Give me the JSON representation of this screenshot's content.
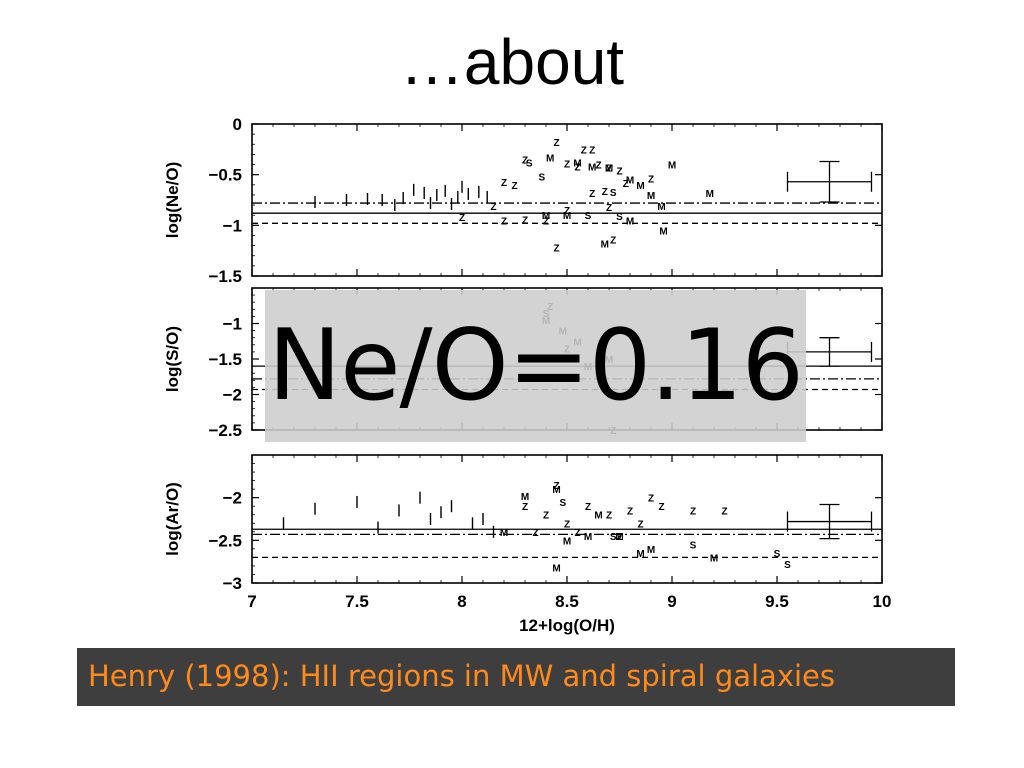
{
  "slide": {
    "title": "…about",
    "overlay_label": "Ne/O=0.16",
    "caption": "Henry (1998): HII regions in MW and spiral galaxies",
    "caption_color": "#ff8a1c",
    "caption_background": "#3e3e3e"
  },
  "chart_data": [
    {
      "type": "scatter",
      "panel": "top",
      "ylabel": "log(Ne/O)",
      "xlim": [
        7,
        10
      ],
      "ylim": [
        -1.5,
        0
      ],
      "yticks": [
        0,
        -0.5,
        -1,
        -1.5
      ],
      "ytick_labels": [
        "0",
        "−0.5",
        "−1",
        "−1.5"
      ],
      "reference_lines": [
        {
          "style": "solid",
          "y": -0.88
        },
        {
          "style": "dashdot",
          "y": -0.78
        },
        {
          "style": "dashed",
          "y": -0.98
        }
      ],
      "error_bar": {
        "x": 9.75,
        "y": -0.57,
        "xerr": 0.2,
        "yerr": 0.2
      },
      "series": [
        {
          "marker": "I",
          "points": [
            [
              7.3,
              -0.77
            ],
            [
              7.45,
              -0.75
            ],
            [
              7.55,
              -0.74
            ],
            [
              7.62,
              -0.75
            ],
            [
              7.72,
              -0.73
            ],
            [
              7.77,
              -0.65
            ],
            [
              7.82,
              -0.68
            ],
            [
              7.88,
              -0.7
            ],
            [
              7.92,
              -0.66
            ],
            [
              7.98,
              -0.72
            ],
            [
              8.03,
              -0.69
            ],
            [
              8.08,
              -0.67
            ],
            [
              7.85,
              -0.78
            ],
            [
              8.0,
              -0.62
            ],
            [
              8.12,
              -0.72
            ],
            [
              7.68,
              -0.8
            ],
            [
              7.95,
              -0.79
            ]
          ]
        },
        {
          "marker": "Z",
          "points": [
            [
              8.45,
              -0.18
            ],
            [
              8.58,
              -0.25
            ],
            [
              8.62,
              -0.25
            ],
            [
              8.3,
              -0.35
            ],
            [
              8.5,
              -0.39
            ],
            [
              8.55,
              -0.42
            ],
            [
              8.65,
              -0.4
            ],
            [
              8.7,
              -0.43
            ],
            [
              8.75,
              -0.46
            ],
            [
              8.78,
              -0.58
            ],
            [
              8.62,
              -0.68
            ],
            [
              8.68,
              -0.66
            ],
            [
              8.2,
              -0.57
            ],
            [
              8.25,
              -0.6
            ],
            [
              8.0,
              -0.92
            ],
            [
              8.15,
              -0.81
            ],
            [
              8.2,
              -0.95
            ],
            [
              8.3,
              -0.94
            ],
            [
              8.4,
              -0.95
            ],
            [
              8.5,
              -0.85
            ],
            [
              8.7,
              -0.82
            ],
            [
              8.9,
              -0.54
            ],
            [
              8.45,
              -1.22
            ],
            [
              8.72,
              -1.14
            ]
          ]
        },
        {
          "marker": "S",
          "points": [
            [
              8.32,
              -0.38
            ],
            [
              8.38,
              -0.52
            ],
            [
              8.6,
              -0.9
            ],
            [
              8.75,
              -0.91
            ],
            [
              8.72,
              -0.67
            ]
          ]
        },
        {
          "marker": "M",
          "points": [
            [
              8.42,
              -0.33
            ],
            [
              8.55,
              -0.38
            ],
            [
              8.62,
              -0.42
            ],
            [
              8.7,
              -0.43
            ],
            [
              8.8,
              -0.55
            ],
            [
              8.85,
              -0.6
            ],
            [
              8.9,
              -0.7
            ],
            [
              8.95,
              -0.81
            ],
            [
              9.0,
              -0.4
            ],
            [
              9.18,
              -0.68
            ],
            [
              8.8,
              -0.95
            ],
            [
              8.96,
              -1.05
            ],
            [
              8.68,
              -1.18
            ],
            [
              8.4,
              -0.9
            ],
            [
              8.5,
              -0.9
            ]
          ]
        }
      ]
    },
    {
      "type": "scatter",
      "panel": "middle",
      "ylabel": "log(S/O)",
      "xlim": [
        7,
        10
      ],
      "ylim": [
        -2.5,
        -0.5
      ],
      "yticks": [
        -1,
        -1.5,
        -2,
        -2.5
      ],
      "ytick_labels": [
        "−1",
        "−1.5",
        "−2",
        "−2.5"
      ],
      "reference_lines": [
        {
          "style": "solid",
          "y": -1.6
        },
        {
          "style": "dashdot",
          "y": -1.78
        },
        {
          "style": "dashed",
          "y": -1.93
        }
      ],
      "error_bar": {
        "x": 9.75,
        "y": -1.4,
        "xerr": 0.2,
        "yerr": 0.2
      },
      "series": [
        {
          "marker": "M",
          "points": [
            [
              8.4,
              -0.95
            ],
            [
              8.48,
              -1.1
            ],
            [
              8.55,
              -1.25
            ],
            [
              8.6,
              -1.6
            ],
            [
              8.7,
              -1.5
            ]
          ]
        },
        {
          "marker": "Z",
          "points": [
            [
              8.42,
              -0.75
            ],
            [
              8.5,
              -1.35
            ],
            [
              8.72,
              -2.5
            ]
          ]
        },
        {
          "marker": "S",
          "points": [
            [
              8.4,
              -0.85
            ]
          ]
        }
      ]
    },
    {
      "type": "scatter",
      "panel": "bottom",
      "ylabel": "log(Ar/O)",
      "xlabel": "12+log(O/H)",
      "xlim": [
        7,
        10
      ],
      "ylim": [
        -3,
        -1.5
      ],
      "xticks": [
        7,
        7.5,
        8,
        8.5,
        9,
        9.5,
        10
      ],
      "xtick_labels": [
        "7",
        "7.5",
        "8",
        "8.5",
        "9",
        "9.5",
        "10"
      ],
      "yticks": [
        -2,
        -2.5,
        -3
      ],
      "ytick_labels": [
        "−2",
        "−2.5",
        "−3"
      ],
      "reference_lines": [
        {
          "style": "solid",
          "y": -2.37
        },
        {
          "style": "dashdot",
          "y": -2.43
        },
        {
          "style": "dashed",
          "y": -2.7
        }
      ],
      "error_bar": {
        "x": 9.75,
        "y": -2.28,
        "xerr": 0.2,
        "yerr": 0.2
      },
      "series": [
        {
          "marker": "I",
          "points": [
            [
              7.15,
              -2.3
            ],
            [
              7.3,
              -2.13
            ],
            [
              7.5,
              -2.05
            ],
            [
              7.7,
              -2.15
            ],
            [
              7.8,
              -2.0
            ],
            [
              7.9,
              -2.17
            ],
            [
              7.95,
              -2.1
            ],
            [
              8.1,
              -2.25
            ],
            [
              7.6,
              -2.35
            ],
            [
              7.85,
              -2.25
            ],
            [
              8.05,
              -2.3
            ],
            [
              8.15,
              -2.4
            ]
          ]
        },
        {
          "marker": "Z",
          "points": [
            [
              8.3,
              -2.1
            ],
            [
              8.4,
              -2.2
            ],
            [
              8.5,
              -2.3
            ],
            [
              8.6,
              -2.1
            ],
            [
              8.7,
              -2.2
            ],
            [
              8.8,
              -2.15
            ],
            [
              8.9,
              -2.0
            ],
            [
              9.1,
              -2.15
            ],
            [
              9.25,
              -2.15
            ],
            [
              8.35,
              -2.4
            ],
            [
              8.55,
              -2.4
            ],
            [
              8.75,
              -2.45
            ],
            [
              8.85,
              -2.3
            ],
            [
              8.95,
              -2.1
            ],
            [
              8.45,
              -1.85
            ]
          ]
        },
        {
          "marker": "M",
          "points": [
            [
              8.3,
              -1.98
            ],
            [
              8.45,
              -1.9
            ],
            [
              8.6,
              -2.45
            ],
            [
              8.5,
              -2.5
            ],
            [
              8.75,
              -2.45
            ],
            [
              8.9,
              -2.6
            ],
            [
              8.85,
              -2.65
            ],
            [
              9.2,
              -2.7
            ],
            [
              8.45,
              -2.82
            ],
            [
              8.2,
              -2.4
            ],
            [
              8.65,
              -2.2
            ]
          ]
        },
        {
          "marker": "S",
          "points": [
            [
              8.48,
              -2.05
            ],
            [
              8.72,
              -2.45
            ],
            [
              9.5,
              -2.65
            ],
            [
              9.55,
              -2.78
            ],
            [
              9.1,
              -2.55
            ]
          ]
        }
      ]
    }
  ]
}
